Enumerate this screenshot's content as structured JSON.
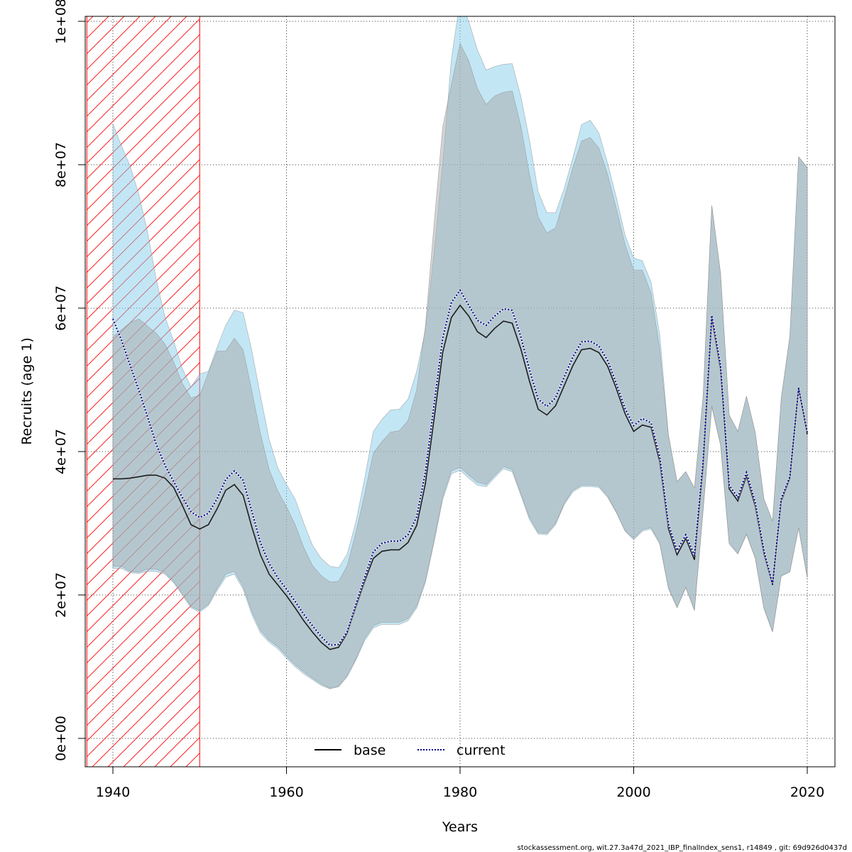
{
  "chart_data": {
    "type": "area",
    "xlabel": "Years",
    "ylabel": "Recruits (age 1)",
    "xlim": [
      1937,
      2024
    ],
    "ylim": [
      -4000000,
      101000000
    ],
    "x_ticks": [
      1940,
      1960,
      1980,
      2000,
      2020
    ],
    "x_tick_labels": [
      "1940",
      "1960",
      "1980",
      "2000",
      "2020"
    ],
    "y_ticks": [
      0,
      20000000,
      40000000,
      60000000,
      80000000,
      100000000
    ],
    "y_tick_labels": [
      "0e+00",
      "2e+07",
      "4e+07",
      "6e+07",
      "8e+07",
      "1e+08"
    ],
    "grid": true,
    "legend_position": "bottom-center",
    "shaded_period": {
      "from": 1937,
      "to": 1950,
      "pattern": "diagonal-hatch",
      "color": "#ff0000"
    },
    "x": [
      1940,
      1941,
      1942,
      1943,
      1944,
      1945,
      1946,
      1947,
      1948,
      1949,
      1950,
      1951,
      1952,
      1953,
      1954,
      1955,
      1956,
      1957,
      1958,
      1959,
      1960,
      1961,
      1962,
      1963,
      1964,
      1965,
      1966,
      1967,
      1968,
      1969,
      1970,
      1971,
      1972,
      1973,
      1974,
      1975,
      1976,
      1977,
      1978,
      1979,
      1980,
      1981,
      1982,
      1983,
      1984,
      1985,
      1986,
      1987,
      1988,
      1989,
      1990,
      1991,
      1992,
      1993,
      1994,
      1995,
      1996,
      1997,
      1998,
      1999,
      2000,
      2001,
      2002,
      2003,
      2004,
      2005,
      2006,
      2007,
      2008,
      2009,
      2010,
      2011,
      2012,
      2013,
      2014,
      2015,
      2016,
      2017,
      2018,
      2019,
      2020
    ],
    "series": [
      {
        "name": "base",
        "line_style": "solid",
        "line_color": "#000000",
        "band_color": "#a8a8a8",
        "values": [
          36200000,
          36200000,
          36300000,
          36500000,
          36700000,
          36700000,
          36300000,
          35000000,
          32500000,
          29800000,
          29200000,
          29800000,
          32000000,
          34600000,
          35400000,
          33900000,
          29500000,
          25600000,
          22900000,
          21400000,
          19900000,
          18200000,
          16400000,
          14800000,
          13400000,
          12400000,
          12700000,
          14700000,
          18400000,
          21900000,
          25100000,
          26100000,
          26300000,
          26300000,
          27300000,
          29700000,
          35500000,
          44500000,
          53800000,
          58700000,
          60400000,
          58900000,
          56700000,
          55900000,
          57200000,
          58200000,
          57900000,
          54300000,
          49800000,
          45900000,
          45100000,
          46400000,
          49200000,
          52000000,
          54200000,
          54400000,
          53800000,
          51900000,
          48800000,
          45300000,
          42800000,
          43700000,
          43400000,
          38600000,
          29300000,
          25600000,
          27900000,
          24900000,
          38000000,
          58600000,
          51500000,
          34800000,
          33100000,
          36600000,
          32400000,
          25800000,
          21400000,
          33100000,
          36300000,
          48900000,
          42400000
        ],
        "lower": [
          24000000,
          24000000,
          23300000,
          23200000,
          23600000,
          23600000,
          23100000,
          21900000,
          20200000,
          18400000,
          17800000,
          18700000,
          20900000,
          22900000,
          23300000,
          21200000,
          17700000,
          15100000,
          13700000,
          12800000,
          11500000,
          10300000,
          9300000,
          8400000,
          7600000,
          7000000,
          7300000,
          8800000,
          11100000,
          13900000,
          15700000,
          16200000,
          16200000,
          16200000,
          16700000,
          18500000,
          22000000,
          27600000,
          33700000,
          37300000,
          37800000,
          36700000,
          35700000,
          35400000,
          36700000,
          37900000,
          37500000,
          34200000,
          30800000,
          28700000,
          28600000,
          30000000,
          32800000,
          34600000,
          35300000,
          35300000,
          35200000,
          33800000,
          31600000,
          29000000,
          27900000,
          29100000,
          29400000,
          27300000,
          21100000,
          18300000,
          21100000,
          17900000,
          32000000,
          46400000,
          41100000,
          27300000,
          25800000,
          28500000,
          25200000,
          18200000,
          14900000,
          22700000,
          23300000,
          29400000,
          22500000
        ],
        "upper": [
          56000000,
          57000000,
          58000000,
          58500000,
          57500000,
          56500000,
          55000000,
          52500000,
          49500000,
          47500000,
          47800000,
          51000000,
          54000000,
          54000000,
          55800000,
          54200000,
          48500000,
          42500000,
          37500000,
          34500000,
          32300000,
          29800000,
          26600000,
          24100000,
          22700000,
          21800000,
          21900000,
          24100000,
          28700000,
          34000000,
          39800000,
          41400000,
          42700000,
          42900000,
          44300000,
          48600000,
          57500000,
          71700000,
          85300000,
          91200000,
          96900000,
          94500000,
          90600000,
          88400000,
          89600000,
          90100000,
          90300000,
          85400000,
          78600000,
          72700000,
          70500000,
          71200000,
          75300000,
          79600000,
          83300000,
          83800000,
          82300000,
          78600000,
          73900000,
          68900000,
          65300000,
          65300000,
          62100000,
          54300000,
          42300000,
          35800000,
          37200000,
          34900000,
          47700000,
          74300000,
          64900000,
          45100000,
          42800000,
          47700000,
          42700000,
          33400000,
          30300000,
          47400000,
          56100000,
          81100000,
          79600000
        ]
      },
      {
        "name": "current",
        "line_style": "dotted",
        "line_color": "#00008b",
        "band_color": "#87ceeb",
        "values": [
          58500000,
          55500000,
          52000000,
          48500000,
          44800000,
          41000000,
          38100000,
          35800000,
          33600000,
          31600000,
          30800000,
          31400000,
          33400000,
          36100000,
          37300000,
          36000000,
          31700000,
          27300000,
          24400000,
          22400000,
          20800000,
          19100000,
          17300000,
          15700000,
          14200000,
          13000000,
          13100000,
          14900000,
          18700000,
          22400000,
          26000000,
          27200000,
          27500000,
          27500000,
          28400000,
          30900000,
          37100000,
          46500000,
          55800000,
          60800000,
          62500000,
          60400000,
          58300000,
          57600000,
          58900000,
          59900000,
          59700000,
          56000000,
          51400000,
          47300000,
          46300000,
          47500000,
          50400000,
          53200000,
          55300000,
          55400000,
          54700000,
          52700000,
          49500000,
          46000000,
          43600000,
          44600000,
          44000000,
          39300000,
          29900000,
          26200000,
          28400000,
          25500000,
          38600000,
          59000000,
          52000000,
          35300000,
          33600000,
          37100000,
          32900000,
          26200000,
          21500000,
          33400000,
          36500000,
          48800000,
          42700000
        ],
        "lower": [
          23700000,
          23700000,
          23100000,
          23000000,
          23300000,
          23300000,
          22900000,
          21700000,
          20000000,
          18200000,
          17600000,
          18500000,
          20600000,
          22500000,
          22900000,
          20800000,
          17300000,
          14700000,
          13400000,
          12500000,
          11200000,
          10000000,
          9000000,
          8200000,
          7400000,
          6900000,
          7200000,
          8600000,
          10900000,
          13600000,
          15400000,
          15900000,
          15900000,
          15900000,
          16400000,
          18200000,
          21700000,
          27300000,
          33300000,
          36900000,
          37400000,
          36300000,
          35300000,
          35100000,
          36400000,
          37600000,
          37200000,
          33900000,
          30500000,
          28500000,
          28400000,
          29800000,
          32600000,
          34400000,
          35100000,
          35100000,
          35000000,
          33600000,
          31500000,
          28900000,
          27700000,
          28900000,
          29200000,
          27100000,
          20900000,
          18200000,
          21000000,
          17800000,
          31700000,
          46200000,
          40900000,
          27100000,
          25700000,
          28400000,
          25100000,
          18100000,
          14800000,
          22600000,
          23200000,
          29300000,
          22300000
        ],
        "upper": [
          85700000,
          82600000,
          79800000,
          75800000,
          70600000,
          64000000,
          58800000,
          55400000,
          51600000,
          49000000,
          50800000,
          51200000,
          54500000,
          57600000,
          59700000,
          59400000,
          54100000,
          47800000,
          41700000,
          37700000,
          35400000,
          33400000,
          30000000,
          26900000,
          25100000,
          24000000,
          23800000,
          25700000,
          30200000,
          36200000,
          42800000,
          44500000,
          45800000,
          45900000,
          47300000,
          51200000,
          56900000,
          67600000,
          80100000,
          94800000,
          103000000,
          100000000,
          96000000,
          93200000,
          93700000,
          94000000,
          94100000,
          89500000,
          83400000,
          76200000,
          73300000,
          73300000,
          76700000,
          81000000,
          85600000,
          86200000,
          84400000,
          80200000,
          75500000,
          70200000,
          67000000,
          66600000,
          63600000,
          56300000,
          42400000,
          35800000,
          37200000,
          34900000,
          47700000,
          74300000,
          64900000,
          45100000,
          42800000,
          47700000,
          42700000,
          33400000,
          30300000,
          47400000,
          56100000,
          81100000,
          79600000
        ]
      }
    ]
  },
  "legend": {
    "base_label": "base",
    "current_label": "current"
  },
  "footer": {
    "text": "stockassessment.org, wit.27.3a47d_2021_IBP_finalIndex_sens1, r14849 , git: 69d926d0437d"
  }
}
